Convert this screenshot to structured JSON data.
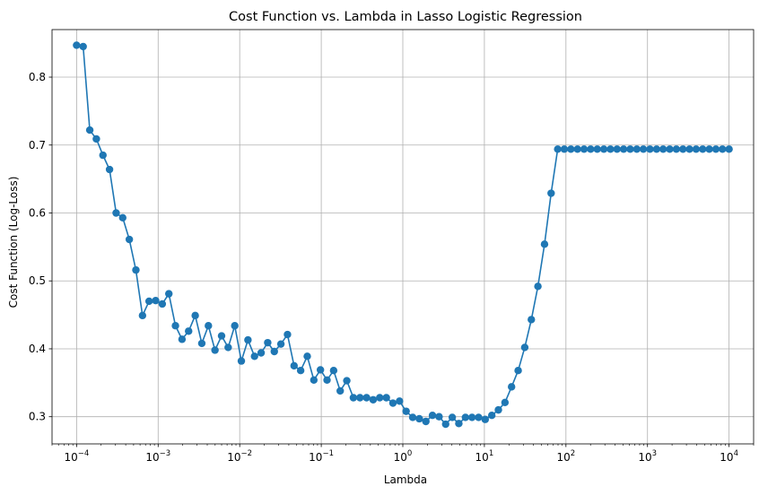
{
  "chart_data": {
    "type": "line",
    "title": "Cost Function vs. Lambda in Lasso Logistic Regression",
    "xlabel": "Lambda",
    "ylabel": "Cost Function (Log-Loss)",
    "xscale": "log",
    "xlim": [
      5e-05,
      20000
    ],
    "ylim": [
      0.26,
      0.87
    ],
    "grid": true,
    "series_color": "#1f77b4",
    "marker": "circle",
    "x_ticks": [
      {
        "value": 0.0001,
        "base": "10",
        "exp": "−4"
      },
      {
        "value": 0.001,
        "base": "10",
        "exp": "−3"
      },
      {
        "value": 0.01,
        "base": "10",
        "exp": "−2"
      },
      {
        "value": 0.1,
        "base": "10",
        "exp": "−1"
      },
      {
        "value": 1,
        "base": "10",
        "exp": "0"
      },
      {
        "value": 10,
        "base": "10",
        "exp": "1"
      },
      {
        "value": 100,
        "base": "10",
        "exp": "2"
      },
      {
        "value": 1000,
        "base": "10",
        "exp": "3"
      },
      {
        "value": 10000,
        "base": "10",
        "exp": "4"
      }
    ],
    "y_ticks": [
      {
        "value": 0.3,
        "label": "0.3"
      },
      {
        "value": 0.4,
        "label": "0.4"
      },
      {
        "value": 0.5,
        "label": "0.5"
      },
      {
        "value": 0.6,
        "label": "0.6"
      },
      {
        "value": 0.7,
        "label": "0.7"
      },
      {
        "value": 0.8,
        "label": "0.8"
      }
    ],
    "x_range": {
      "start": 0.0001,
      "stop": 10000,
      "count": 100
    },
    "values": [
      0.847,
      0.845,
      0.722,
      0.709,
      0.685,
      0.664,
      0.6,
      0.593,
      0.561,
      0.516,
      0.449,
      0.47,
      0.471,
      0.466,
      0.481,
      0.434,
      0.414,
      0.426,
      0.449,
      0.408,
      0.434,
      0.398,
      0.419,
      0.402,
      0.434,
      0.382,
      0.413,
      0.389,
      0.394,
      0.409,
      0.396,
      0.407,
      0.421,
      0.375,
      0.368,
      0.389,
      0.354,
      0.369,
      0.354,
      0.368,
      0.338,
      0.353,
      0.328,
      0.328,
      0.328,
      0.325,
      0.328,
      0.328,
      0.32,
      0.323,
      0.308,
      0.299,
      0.297,
      0.293,
      0.302,
      0.3,
      0.289,
      0.299,
      0.29,
      0.299,
      0.299,
      0.299,
      0.296,
      0.302,
      0.31,
      0.321,
      0.344,
      0.368,
      0.402,
      0.443,
      0.492,
      0.554,
      0.629,
      0.694,
      0.694,
      0.694,
      0.694,
      0.694,
      0.694,
      0.694,
      0.694,
      0.694,
      0.694,
      0.694,
      0.694,
      0.694,
      0.694,
      0.694,
      0.694,
      0.694,
      0.694,
      0.694,
      0.694,
      0.694,
      0.694,
      0.694,
      0.694,
      0.694,
      0.694,
      0.694
    ]
  }
}
